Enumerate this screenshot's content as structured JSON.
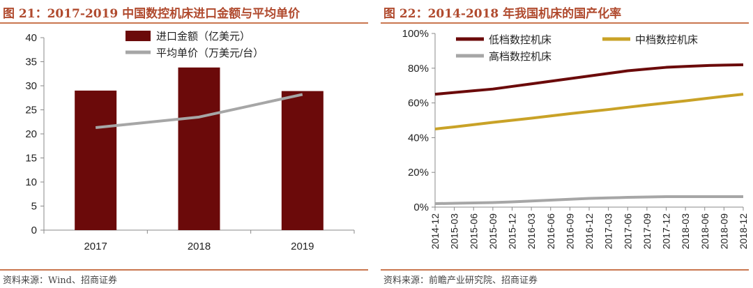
{
  "chart_data": [
    {
      "type": "bar",
      "figure_title": "图 21：2017-2019 中国数控机床进口金额与平均单价",
      "categories": [
        "2017",
        "2018",
        "2019"
      ],
      "ylim": [
        0,
        40
      ],
      "yticks": [
        "0",
        "5",
        "10",
        "15",
        "20",
        "25",
        "30",
        "35",
        "40"
      ],
      "legend_position": "top-center",
      "grid": false,
      "series": [
        {
          "name": "进口金额（亿美元）",
          "type": "bar",
          "color": "#6b0a0a",
          "values": [
            29.0,
            33.8,
            28.9
          ]
        },
        {
          "name": "平均单价（万美元/台）",
          "type": "line",
          "color": "#a6a6a6",
          "values": [
            21.3,
            23.5,
            28.2
          ]
        }
      ],
      "source": "资料来源：Wind、招商证券"
    },
    {
      "type": "line",
      "figure_title": "图 22：2014-2018 年我国机床的国产化率",
      "x": [
        "2014-12",
        "2015-03",
        "2015-06",
        "2015-09",
        "2015-12",
        "2016-03",
        "2016-06",
        "2016-09",
        "2016-12",
        "2017-03",
        "2017-06",
        "2017-09",
        "2017-12",
        "2018-03",
        "2018-06",
        "2018-09",
        "2018-12"
      ],
      "ylim": [
        0,
        100
      ],
      "yticks": [
        "0%",
        "20%",
        "40%",
        "60%",
        "80%",
        "100%"
      ],
      "legend_position": "top",
      "grid": false,
      "series": [
        {
          "name": "低档数控机床",
          "color": "#6b0a0a",
          "values": [
            65,
            66,
            67,
            68,
            69.5,
            71,
            72.5,
            74,
            75.5,
            77,
            78.5,
            79.5,
            80.5,
            81,
            81.5,
            81.8,
            82
          ]
        },
        {
          "name": "中档数控机床",
          "color": "#c9a227",
          "values": [
            45,
            46.2,
            47.5,
            48.8,
            50,
            51.2,
            52.5,
            53.8,
            55,
            56.2,
            57.5,
            58.8,
            60,
            61.2,
            62.5,
            63.8,
            65
          ]
        },
        {
          "name": "高档数控机床",
          "color": "#a6a6a6",
          "values": [
            2,
            2.2,
            2.4,
            2.6,
            3,
            3.5,
            4,
            4.5,
            5,
            5.3,
            5.6,
            5.8,
            6,
            6,
            6,
            6,
            6
          ]
        }
      ],
      "source": "资料来源：前瞻产业研究院、招商证券"
    }
  ]
}
